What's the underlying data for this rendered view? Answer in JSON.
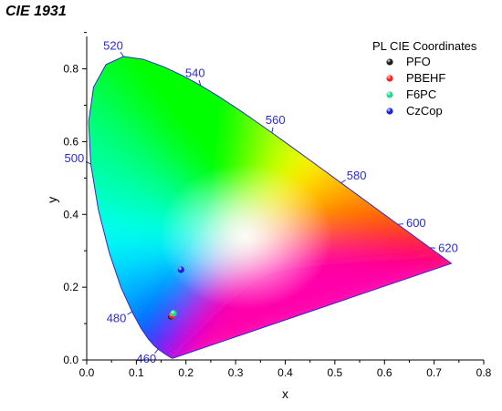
{
  "title": "CIE 1931",
  "chart_data": {
    "type": "scatter",
    "title": "CIE 1931",
    "xlabel": "x",
    "ylabel": "y",
    "xlim": [
      0.0,
      0.8
    ],
    "ylim": [
      0.0,
      0.88
    ],
    "x_ticks": [
      "0.0",
      "0.1",
      "0.2",
      "0.3",
      "0.4",
      "0.5",
      "0.6",
      "0.7",
      "0.8"
    ],
    "y_ticks": [
      "0.0",
      "0.2",
      "0.4",
      "0.6",
      "0.8"
    ],
    "grid": false,
    "legend": {
      "title": "PL CIE Coordinates",
      "placement": "top-right"
    },
    "series": [
      {
        "name": "PFO",
        "color": "#1a1a1a",
        "x": [
          0.17
        ],
        "y": [
          0.12
        ]
      },
      {
        "name": "PBEHF",
        "color": "#ff2020",
        "x": [
          0.172
        ],
        "y": [
          0.122
        ]
      },
      {
        "name": "F6PC",
        "color": "#20d890",
        "x": [
          0.175
        ],
        "y": [
          0.128
        ]
      },
      {
        "name": "CzCop",
        "color": "#1a20e0",
        "x": [
          0.19
        ],
        "y": [
          0.248
        ]
      }
    ],
    "locus": {
      "color": "#2b2bd6",
      "x": [
        0.1741,
        0.1736,
        0.1728,
        0.1714,
        0.1689,
        0.1644,
        0.1566,
        0.144,
        0.1355,
        0.1241,
        0.1096,
        0.0913,
        0.0687,
        0.0454,
        0.0235,
        0.0082,
        0.0039,
        0.0139,
        0.0389,
        0.0743,
        0.1142,
        0.1547,
        0.1929,
        0.2296,
        0.2658,
        0.3016,
        0.3373,
        0.3731,
        0.4087,
        0.4441,
        0.4788,
        0.5125,
        0.5448,
        0.5752,
        0.6029,
        0.627,
        0.6482,
        0.6658,
        0.6801,
        0.6915,
        0.7006,
        0.7079,
        0.714,
        0.719,
        0.723,
        0.726,
        0.7283,
        0.73,
        0.7311,
        0.732,
        0.7347
      ],
      "y": [
        0.005,
        0.005,
        0.0048,
        0.0051,
        0.0069,
        0.0109,
        0.0177,
        0.0297,
        0.0399,
        0.0578,
        0.0868,
        0.1327,
        0.2007,
        0.295,
        0.4127,
        0.5384,
        0.6548,
        0.7502,
        0.812,
        0.8338,
        0.8262,
        0.8059,
        0.7816,
        0.7543,
        0.7243,
        0.6923,
        0.6589,
        0.6245,
        0.5896,
        0.5547,
        0.5202,
        0.4866,
        0.4544,
        0.4242,
        0.3965,
        0.3725,
        0.3514,
        0.334,
        0.3197,
        0.3083,
        0.2993,
        0.292,
        0.2859,
        0.2809,
        0.277,
        0.274,
        0.2717,
        0.27,
        0.2689,
        0.268,
        0.2653
      ]
    },
    "wavelength_labels": [
      {
        "label": "460",
        "x": 0.144,
        "y": 0.0297
      },
      {
        "label": "480",
        "x": 0.0913,
        "y": 0.1327
      },
      {
        "label": "500",
        "x": 0.0082,
        "y": 0.5384
      },
      {
        "label": "520",
        "x": 0.0743,
        "y": 0.8338
      },
      {
        "label": "540",
        "x": 0.2296,
        "y": 0.7543
      },
      {
        "label": "560",
        "x": 0.3731,
        "y": 0.6245
      },
      {
        "label": "580",
        "x": 0.5125,
        "y": 0.4866
      },
      {
        "label": "600",
        "x": 0.627,
        "y": 0.3725
      },
      {
        "label": "620",
        "x": 0.6915,
        "y": 0.3083
      }
    ]
  },
  "colors": {
    "axis": "#000000",
    "locus_line": "#2b2bd6",
    "wavelength_text": "#2b2bd6"
  }
}
